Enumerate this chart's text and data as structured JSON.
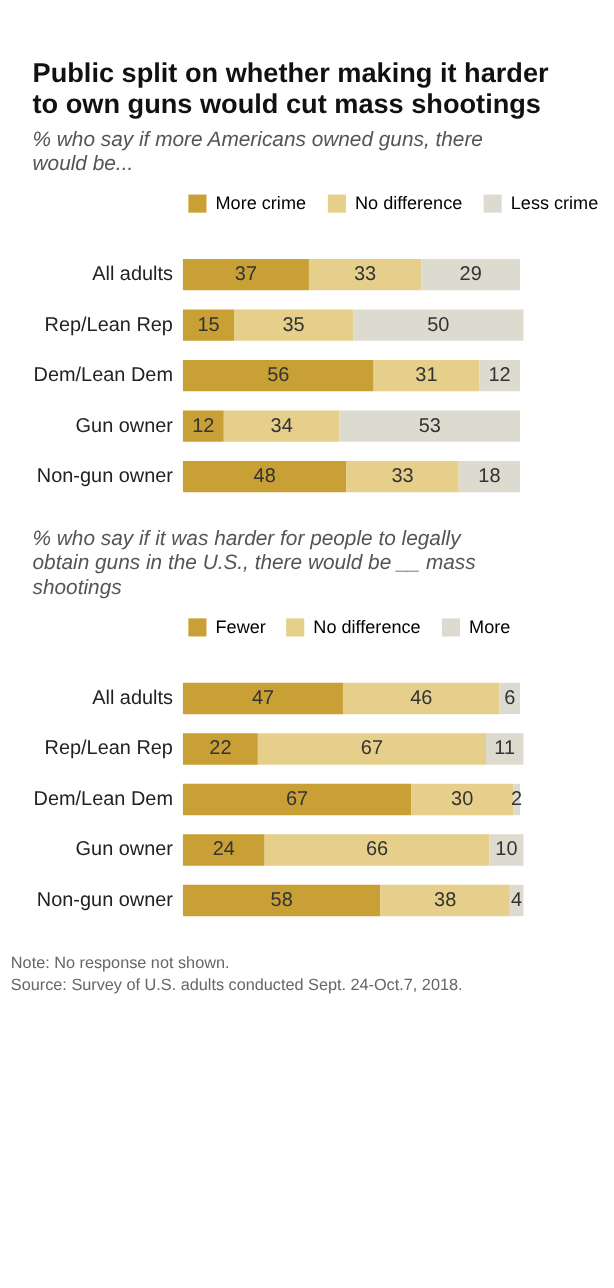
{
  "chart_data": [
    {
      "type": "bar",
      "orientation": "horizontal",
      "stacked": true,
      "data_labels": true,
      "legend": "top",
      "tick_labels": "y",
      "grid": false,
      "title": "Public split on whether making it harder to own guns would cut mass shootings",
      "subtitle": "% who say if more Americans owned guns, there would be...",
      "categories": [
        "All adults",
        "Rep/Lean Rep",
        "Dem/Lean Dem",
        "Gun owner",
        "Non-gun owner"
      ],
      "series": [
        {
          "name": "More crime",
          "color": "#c9a035",
          "values": [
            37,
            15,
            56,
            12,
            48
          ]
        },
        {
          "name": "No difference",
          "color": "#e6cf8a",
          "values": [
            33,
            35,
            31,
            34,
            33
          ]
        },
        {
          "name": "Less crime",
          "color": "#dddad0",
          "values": [
            29,
            50,
            12,
            53,
            18
          ]
        }
      ]
    },
    {
      "type": "bar",
      "orientation": "horizontal",
      "stacked": true,
      "data_labels": true,
      "legend": "top",
      "tick_labels": "y",
      "grid": false,
      "subtitle": "% who say if it was harder for people to legally obtain guns in the U.S., there would be __ mass shootings",
      "categories": [
        "All adults",
        "Rep/Lean Rep",
        "Dem/Lean Dem",
        "Gun owner",
        "Non-gun owner"
      ],
      "series": [
        {
          "name": "Fewer",
          "color": "#c9a035",
          "values": [
            47,
            22,
            67,
            24,
            58
          ]
        },
        {
          "name": "No difference",
          "color": "#e6cf8a",
          "values": [
            46,
            67,
            30,
            66,
            38
          ]
        },
        {
          "name": "More",
          "color": "#dddad0",
          "values": [
            6,
            11,
            2,
            10,
            4
          ]
        }
      ],
      "annotations": [
        "Note: No response not shown.",
        "Source: Survey of U.S. adults conducted Sept. 24-Oct.7, 2018."
      ]
    }
  ]
}
